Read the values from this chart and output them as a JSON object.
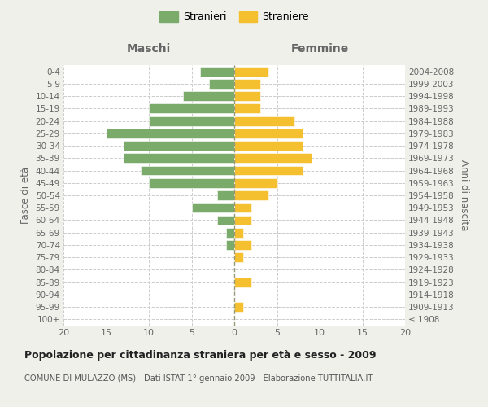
{
  "age_groups": [
    "100+",
    "95-99",
    "90-94",
    "85-89",
    "80-84",
    "75-79",
    "70-74",
    "65-69",
    "60-64",
    "55-59",
    "50-54",
    "45-49",
    "40-44",
    "35-39",
    "30-34",
    "25-29",
    "20-24",
    "15-19",
    "10-14",
    "5-9",
    "0-4"
  ],
  "birth_years": [
    "≤ 1908",
    "1909-1913",
    "1914-1918",
    "1919-1923",
    "1924-1928",
    "1929-1933",
    "1934-1938",
    "1939-1943",
    "1944-1948",
    "1949-1953",
    "1954-1958",
    "1959-1963",
    "1964-1968",
    "1969-1973",
    "1974-1978",
    "1979-1983",
    "1984-1988",
    "1989-1993",
    "1994-1998",
    "1999-2003",
    "2004-2008"
  ],
  "maschi": [
    0,
    0,
    0,
    0,
    0,
    0,
    1,
    1,
    2,
    5,
    2,
    10,
    11,
    13,
    13,
    15,
    10,
    10,
    6,
    3,
    4
  ],
  "femmine": [
    0,
    1,
    0,
    2,
    0,
    1,
    2,
    1,
    2,
    2,
    4,
    5,
    8,
    9,
    8,
    8,
    7,
    3,
    3,
    3,
    4
  ],
  "maschi_color": "#7aab6a",
  "femmine_color": "#f5c030",
  "background_color": "#f0f0eb",
  "plot_bg_color": "#ffffff",
  "grid_color": "#cccccc",
  "title": "Popolazione per cittadinanza straniera per età e sesso - 2009",
  "subtitle": "COMUNE DI MULAZZO (MS) - Dati ISTAT 1° gennaio 2009 - Elaborazione TUTTITALIA.IT",
  "xlabel_left": "Maschi",
  "xlabel_right": "Femmine",
  "ylabel_left": "Fasce di età",
  "ylabel_right": "Anni di nascita",
  "legend_maschi": "Stranieri",
  "legend_femmine": "Straniere",
  "xlim": [
    -20,
    20
  ],
  "xticks": [
    -20,
    -15,
    -10,
    -5,
    0,
    5,
    10,
    15,
    20
  ],
  "xticklabels": [
    "20",
    "15",
    "10",
    "5",
    "0",
    "5",
    "10",
    "15",
    "20"
  ]
}
